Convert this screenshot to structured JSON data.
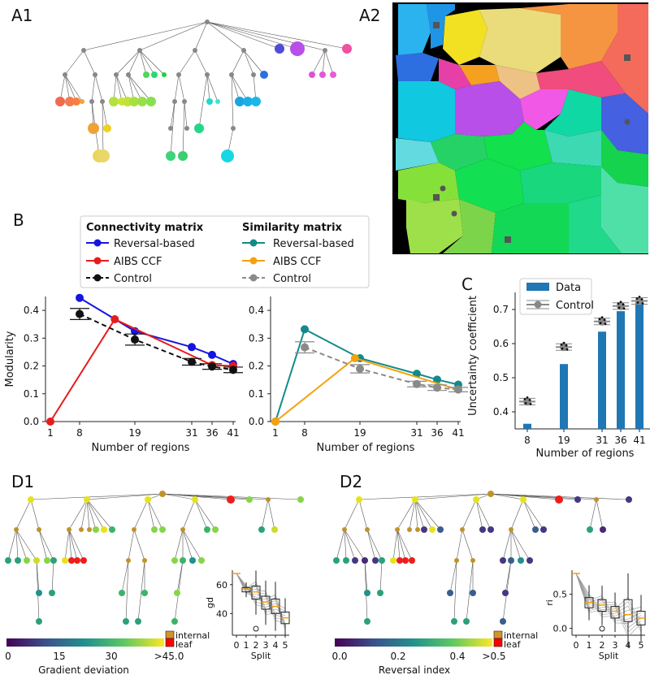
{
  "panels": {
    "a1": "A1",
    "a2": "A2",
    "b": "B",
    "c": "C",
    "d1": "D1",
    "d2": "D2"
  },
  "legend_b": {
    "conn_title": "Connectivity matrix",
    "sim_title": "Similarity matrix",
    "reversal": "Reversal-based",
    "aibs": "AIBS CCF",
    "control": "Control"
  },
  "colors": {
    "blue": "#1515e0",
    "red": "#e61c1c",
    "black": "#111111",
    "teal": "#138a8a",
    "orange": "#f5a10c",
    "gray": "#8a8a8a",
    "bar": "#1f77b4"
  },
  "chart_data": [
    {
      "type": "line",
      "id": "B-left",
      "title": "",
      "xlabel": "Number of regions",
      "ylabel": "Modularity",
      "ylim": [
        0,
        0.45
      ],
      "x_ticks": [
        1,
        8,
        19,
        31,
        36,
        41
      ],
      "y_ticks": [
        "0.0",
        "0.1",
        "0.2",
        "0.3",
        "0.4"
      ],
      "series": [
        {
          "name": "Reversal-based",
          "color": "blue",
          "x": [
            8,
            19,
            31,
            36,
            41
          ],
          "y": [
            0.445,
            0.325,
            0.268,
            0.24,
            0.207
          ]
        },
        {
          "name": "AIBS CCF",
          "color": "red",
          "x": [
            1,
            15,
            36,
            41
          ],
          "y": [
            0.0,
            0.368,
            0.203,
            0.2
          ]
        },
        {
          "name": "Control",
          "color": "black",
          "dashed": true,
          "x": [
            8,
            19,
            31,
            36,
            41
          ],
          "y": [
            0.387,
            0.295,
            0.215,
            0.198,
            0.186
          ],
          "err": [
            0.02,
            0.02,
            0.012,
            0.01,
            0.01
          ]
        }
      ]
    },
    {
      "type": "line",
      "id": "B-right",
      "xlabel": "Number of regions",
      "ylabel": "",
      "ylim": [
        0,
        0.45
      ],
      "x_ticks": [
        1,
        8,
        19,
        31,
        36,
        41
      ],
      "y_ticks": [
        "0.0",
        "0.1",
        "0.2",
        "0.3",
        "0.4"
      ],
      "series": [
        {
          "name": "Reversal-based",
          "color": "teal",
          "x": [
            1,
            8,
            19,
            31,
            36,
            41
          ],
          "y": [
            0.0,
            0.332,
            0.228,
            0.172,
            0.151,
            0.133
          ]
        },
        {
          "name": "AIBS CCF",
          "color": "orange",
          "x": [
            1,
            18,
            41
          ],
          "y": [
            0.0,
            0.228,
            0.115
          ]
        },
        {
          "name": "Control",
          "color": "gray",
          "dashed": true,
          "x": [
            8,
            19,
            31,
            36,
            41
          ],
          "y": [
            0.267,
            0.19,
            0.135,
            0.122,
            0.115
          ],
          "err": [
            0.02,
            0.015,
            0.01,
            0.01,
            0.008
          ]
        }
      ]
    },
    {
      "type": "bar",
      "id": "C",
      "xlabel": "Number of regions",
      "ylabel": "Uncertainty coefficient",
      "ylim": [
        0.35,
        0.75
      ],
      "y_ticks": [
        "0.4",
        "0.5",
        "0.6",
        "0.7"
      ],
      "categories": [
        "8",
        "19",
        "31",
        "36",
        "41"
      ],
      "values": [
        0.365,
        0.54,
        0.635,
        0.695,
        0.72
      ],
      "control": [
        0.43,
        0.59,
        0.665,
        0.71,
        0.725
      ],
      "legend": {
        "data": "Data",
        "control": "Control"
      }
    },
    {
      "type": "box",
      "id": "D1-inset",
      "xlabel": "Split",
      "ylabel": "gd",
      "ylim": [
        25,
        70
      ],
      "y_ticks": [
        "40",
        "60"
      ],
      "categories": [
        "0",
        "1",
        "2",
        "3",
        "4",
        "5"
      ],
      "medians": [
        null,
        57,
        55,
        48,
        45,
        37
      ],
      "q1": [
        null,
        55,
        50,
        43,
        40,
        33
      ],
      "q3": [
        null,
        58,
        59,
        52,
        50,
        41
      ]
    },
    {
      "type": "box",
      "id": "D2-inset",
      "xlabel": "Split",
      "ylabel": "ri",
      "ylim": [
        -0.1,
        0.85
      ],
      "y_ticks": [
        "0.0",
        "0.5"
      ],
      "categories": [
        "0",
        "1",
        "2",
        "3",
        "4",
        "5"
      ],
      "medians": [
        null,
        0.38,
        0.34,
        0.25,
        0.2,
        0.15
      ],
      "q1": [
        null,
        0.3,
        0.25,
        0.15,
        0.1,
        0.05
      ],
      "q3": [
        null,
        0.45,
        0.42,
        0.32,
        0.42,
        0.25
      ]
    }
  ],
  "colorbar_d1": {
    "label": "Gradient deviation",
    "ticks": [
      "0",
      "15",
      "30",
      ">45.0"
    ],
    "internal": "internal",
    "leaf": "leaf"
  },
  "colorbar_d2": {
    "label": "Reversal index",
    "ticks": [
      "0.0",
      "0.2",
      "0.4",
      ">0.5"
    ],
    "internal": "internal",
    "leaf": "leaf"
  }
}
